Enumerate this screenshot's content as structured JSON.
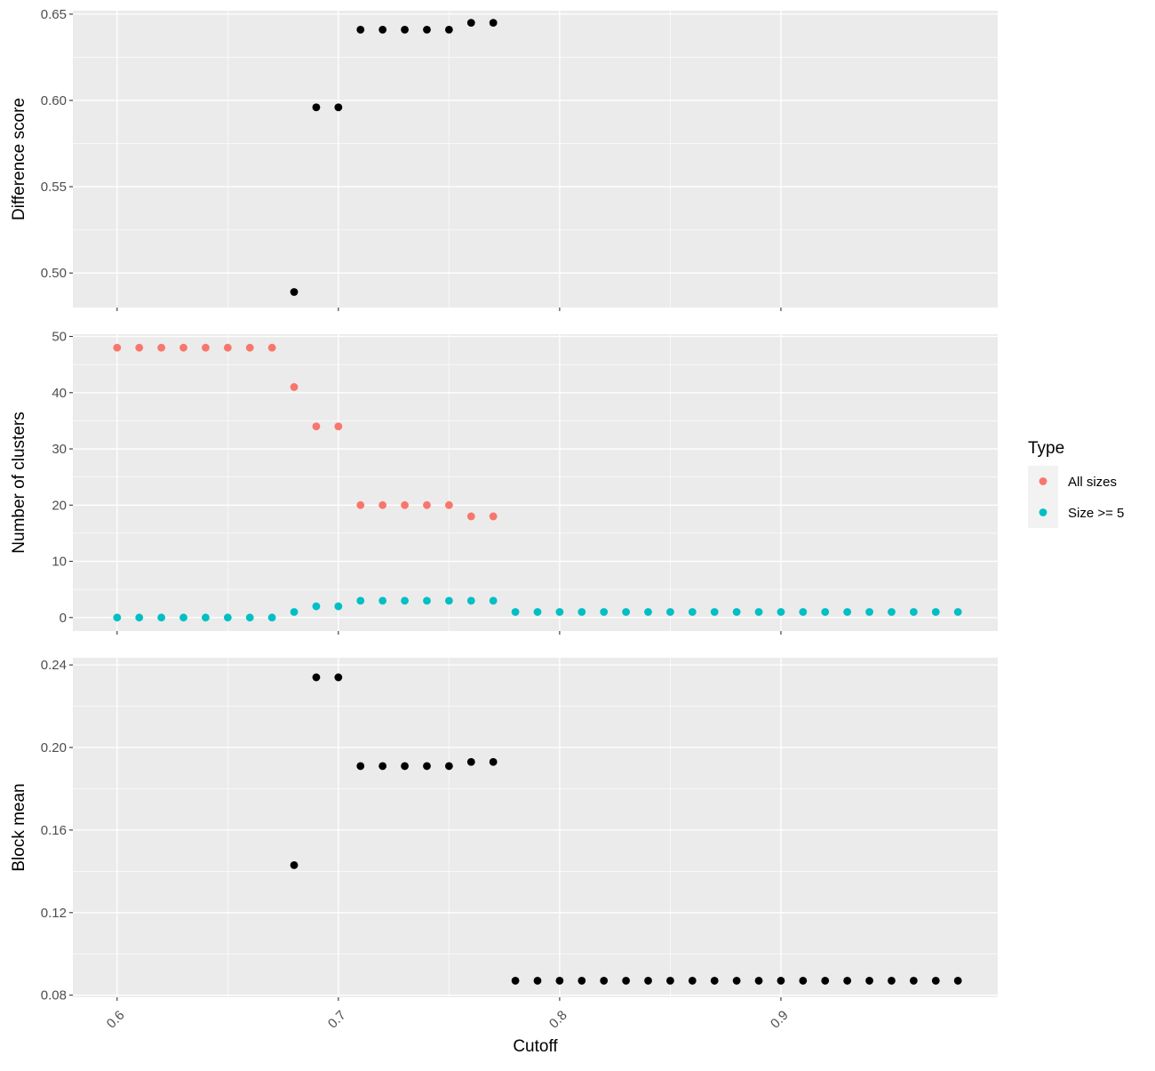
{
  "chart_data": {
    "type": "scatter",
    "x_axis": {
      "label": "Cutoff",
      "range": [
        0.58,
        0.998
      ],
      "ticks": [
        0.6,
        0.7,
        0.8,
        0.9
      ],
      "tick_labels": [
        "0.6",
        "0.7",
        "0.8",
        "0.9"
      ]
    },
    "legend": {
      "title": "Type",
      "position": "right",
      "entries": [
        {
          "label": "All sizes",
          "color": "#F8766D"
        },
        {
          "label": "Size >= 5",
          "color": "#00BFC4"
        }
      ]
    },
    "panels": [
      {
        "ylabel": "Difference score",
        "ylim": [
          0.48,
          0.652
        ],
        "yticks": [
          0.5,
          0.55,
          0.6,
          0.65
        ],
        "ytick_labels": [
          "0.50",
          "0.55",
          "0.60",
          "0.65"
        ],
        "series": [
          {
            "color": "#000000",
            "x": [
              0.68,
              0.69,
              0.7,
              0.71,
              0.72,
              0.73,
              0.74,
              0.75,
              0.76,
              0.77
            ],
            "y": [
              0.489,
              0.596,
              0.596,
              0.641,
              0.641,
              0.641,
              0.641,
              0.641,
              0.645,
              0.645
            ]
          }
        ]
      },
      {
        "ylabel": "Number of clusters",
        "ylim": [
          -2.4,
          50.4
        ],
        "yticks": [
          0,
          10,
          20,
          30,
          40,
          50
        ],
        "ytick_labels": [
          "0",
          "10",
          "20",
          "30",
          "40",
          "50"
        ],
        "series": [
          {
            "name": "All sizes",
            "color": "#F8766D",
            "x": [
              0.6,
              0.61,
              0.62,
              0.63,
              0.64,
              0.65,
              0.66,
              0.67,
              0.68,
              0.69,
              0.7,
              0.71,
              0.72,
              0.73,
              0.74,
              0.75,
              0.76,
              0.77
            ],
            "y": [
              48,
              48,
              48,
              48,
              48,
              48,
              48,
              48,
              41,
              34,
              34,
              20,
              20,
              20,
              20,
              20,
              18,
              18
            ]
          },
          {
            "name": "Size >= 5",
            "color": "#00BFC4",
            "x": [
              0.6,
              0.61,
              0.62,
              0.63,
              0.64,
              0.65,
              0.66,
              0.67,
              0.68,
              0.69,
              0.7,
              0.71,
              0.72,
              0.73,
              0.74,
              0.75,
              0.76,
              0.77,
              0.78,
              0.79,
              0.8,
              0.81,
              0.82,
              0.83,
              0.84,
              0.85,
              0.86,
              0.87,
              0.88,
              0.89,
              0.9,
              0.91,
              0.92,
              0.93,
              0.94,
              0.95,
              0.96,
              0.97,
              0.98
            ],
            "y": [
              0,
              0,
              0,
              0,
              0,
              0,
              0,
              0,
              1,
              2,
              2,
              3,
              3,
              3,
              3,
              3,
              3,
              3,
              1,
              1,
              1,
              1,
              1,
              1,
              1,
              1,
              1,
              1,
              1,
              1,
              1,
              1,
              1,
              1,
              1,
              1,
              1,
              1,
              1
            ]
          }
        ]
      },
      {
        "ylabel": "Block mean",
        "ylim": [
          0.079,
          0.2435
        ],
        "yticks": [
          0.08,
          0.12,
          0.16,
          0.2,
          0.24
        ],
        "ytick_labels": [
          "0.08",
          "0.12",
          "0.16",
          "0.20",
          "0.24"
        ],
        "series": [
          {
            "color": "#000000",
            "x": [
              0.68,
              0.69,
              0.7,
              0.71,
              0.72,
              0.73,
              0.74,
              0.75,
              0.76,
              0.77,
              0.78,
              0.79,
              0.8,
              0.81,
              0.82,
              0.83,
              0.84,
              0.85,
              0.86,
              0.87,
              0.88,
              0.89,
              0.9,
              0.91,
              0.92,
              0.93,
              0.94,
              0.95,
              0.96,
              0.97,
              0.98
            ],
            "y": [
              0.143,
              0.234,
              0.234,
              0.191,
              0.191,
              0.191,
              0.191,
              0.191,
              0.193,
              0.193,
              0.087,
              0.087,
              0.087,
              0.087,
              0.087,
              0.087,
              0.087,
              0.087,
              0.087,
              0.087,
              0.087,
              0.087,
              0.087,
              0.087,
              0.087,
              0.087,
              0.087,
              0.087,
              0.087,
              0.087,
              0.087
            ]
          }
        ]
      }
    ]
  }
}
